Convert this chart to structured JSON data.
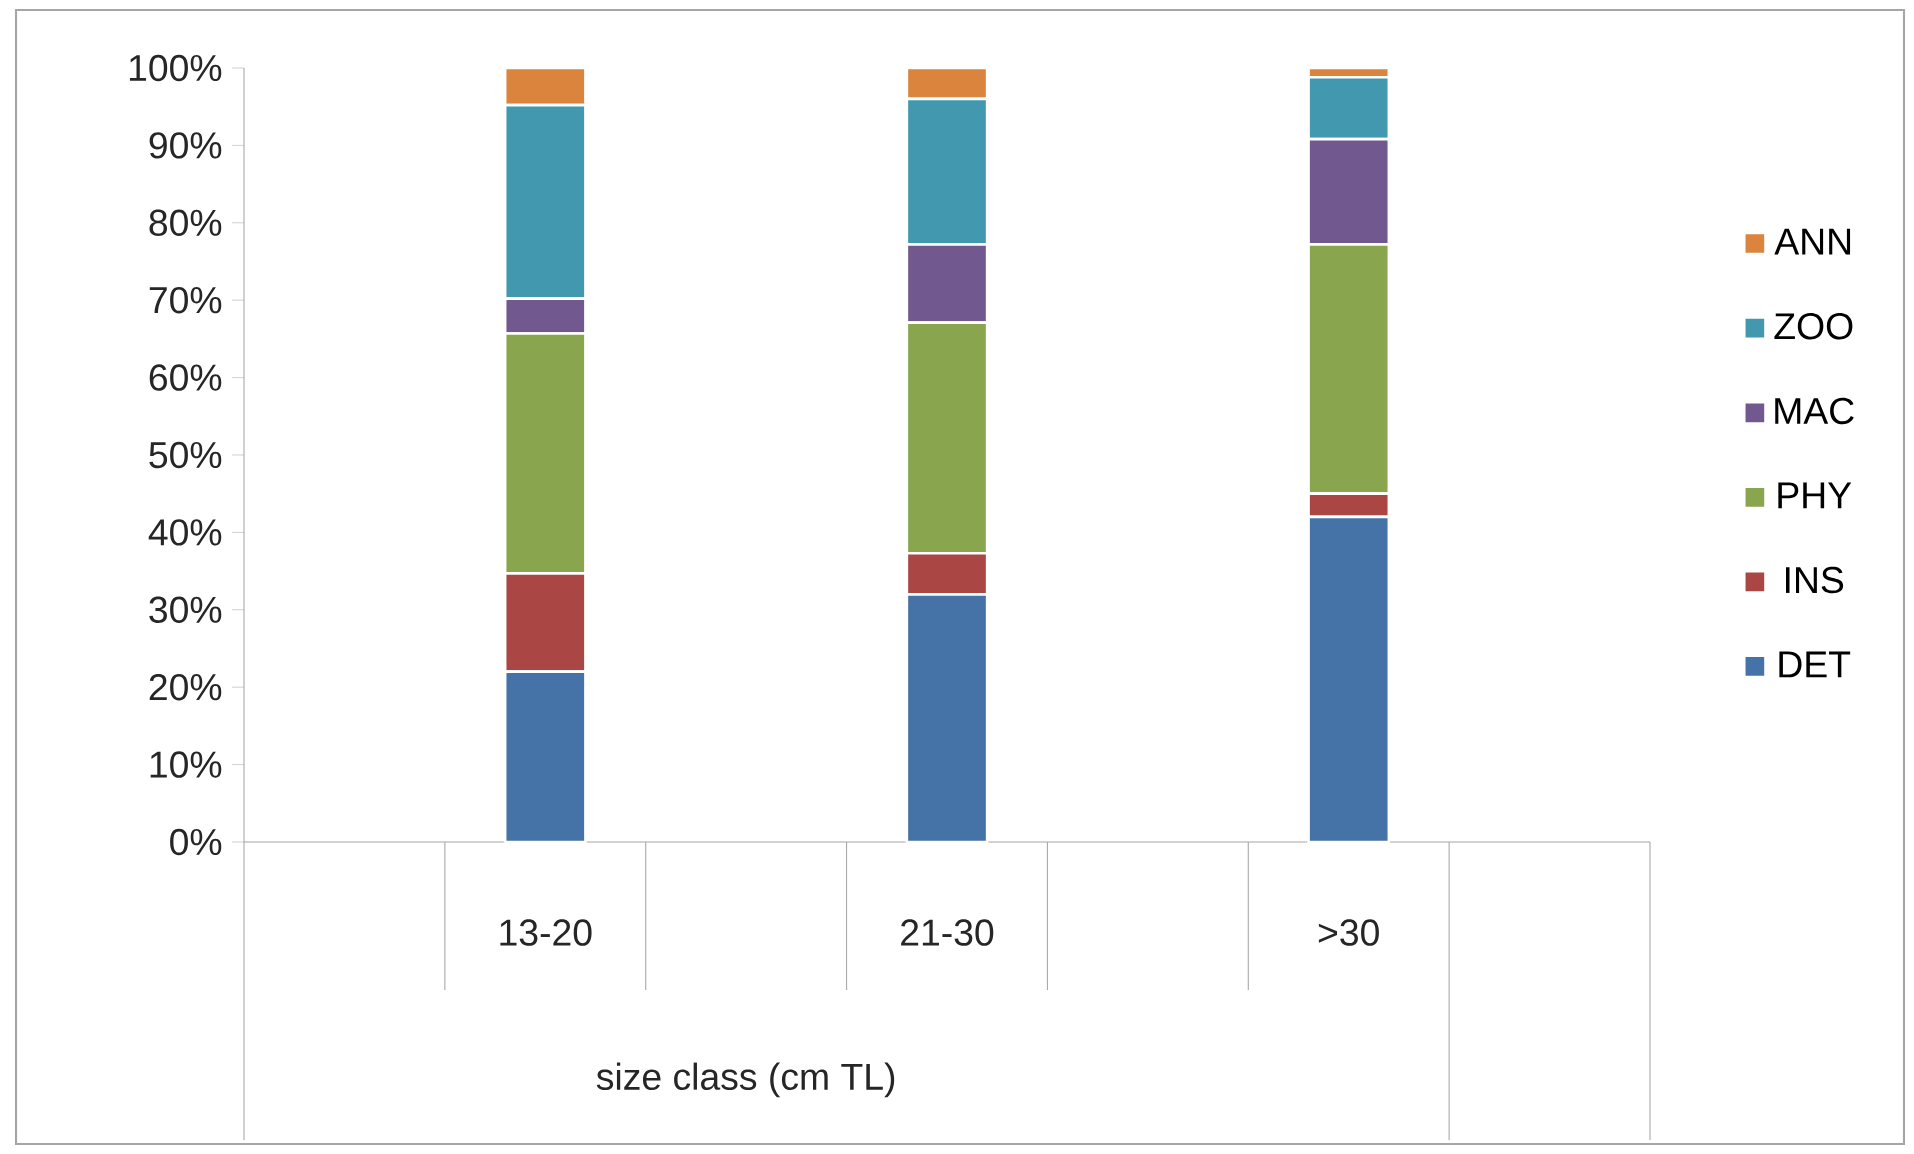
{
  "chart_data": {
    "type": "bar",
    "stacked": true,
    "xlabel": "size class (cm TL)",
    "categories": [
      null,
      "13-20",
      null,
      "21-30",
      null,
      ">30",
      null
    ],
    "series": [
      {
        "name": "DET",
        "color": "#4572a7",
        "values": [
          null,
          22,
          null,
          32,
          null,
          42,
          null
        ]
      },
      {
        "name": "INS",
        "color": "#aa4643",
        "values": [
          null,
          12.7,
          null,
          5.3,
          null,
          3,
          null
        ]
      },
      {
        "name": "PHY",
        "color": "#89a54e",
        "values": [
          null,
          31,
          null,
          29.8,
          null,
          32.2,
          null
        ]
      },
      {
        "name": "MAC",
        "color": "#71588f",
        "values": [
          null,
          4.5,
          null,
          10.1,
          null,
          13.6,
          null
        ]
      },
      {
        "name": "ZOO",
        "color": "#4198af",
        "values": [
          null,
          25,
          null,
          18.8,
          null,
          8,
          null
        ]
      },
      {
        "name": "ANN",
        "color": "#db843d",
        "values": [
          null,
          4.8,
          null,
          4,
          null,
          1.2,
          null
        ]
      }
    ],
    "ylim": [
      0,
      100
    ],
    "yticks": [
      {
        "value": 0,
        "label": "0%"
      },
      {
        "value": 10,
        "label": "10%"
      },
      {
        "value": 20,
        "label": "20%"
      },
      {
        "value": 30,
        "label": "30%"
      },
      {
        "value": 40,
        "label": "40%"
      },
      {
        "value": 50,
        "label": "50%"
      },
      {
        "value": 60,
        "label": "60%"
      },
      {
        "value": 70,
        "label": "70%"
      },
      {
        "value": 80,
        "label": "80%"
      },
      {
        "value": 90,
        "label": "90%"
      },
      {
        "value": 100,
        "label": "100%"
      }
    ],
    "legend": "right"
  }
}
